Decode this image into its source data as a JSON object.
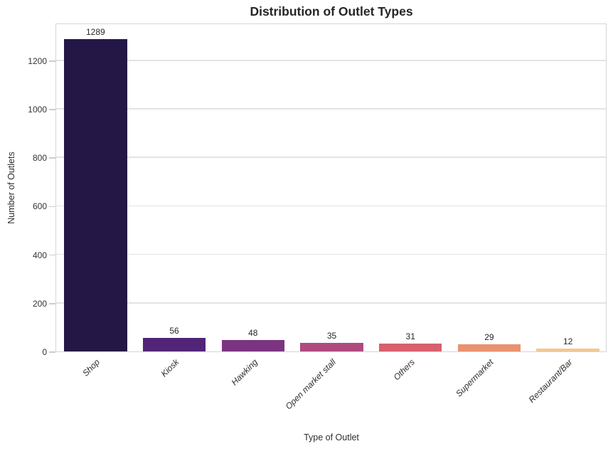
{
  "chart_data": {
    "type": "bar",
    "title": "Distribution of Outlet Types",
    "xlabel": "Type of Outlet",
    "ylabel": "Number of Outlets",
    "categories": [
      "Shop",
      "Kiosk",
      "Hawking",
      "Open market stall",
      "Others",
      "Supermarket",
      "Restaurant/Bar"
    ],
    "values": [
      1289,
      56,
      48,
      35,
      31,
      29,
      12
    ],
    "bar_colors": [
      "#241746",
      "#512478",
      "#7b3480",
      "#af4a7e",
      "#d7606e",
      "#e9926f",
      "#f2c893"
    ],
    "yticks": [
      0,
      200,
      400,
      600,
      800,
      1000,
      1200
    ],
    "ylim": [
      0,
      1355
    ],
    "grid": "horizontal",
    "legend_position": "none",
    "value_labels_shown": true,
    "colors": {
      "title_text": "#262626",
      "tick_text": "#333333",
      "grid": "#e3e3e3",
      "spine": "#d6d6d6",
      "tick_mark": "#cccccc",
      "background": "#ffffff"
    }
  }
}
